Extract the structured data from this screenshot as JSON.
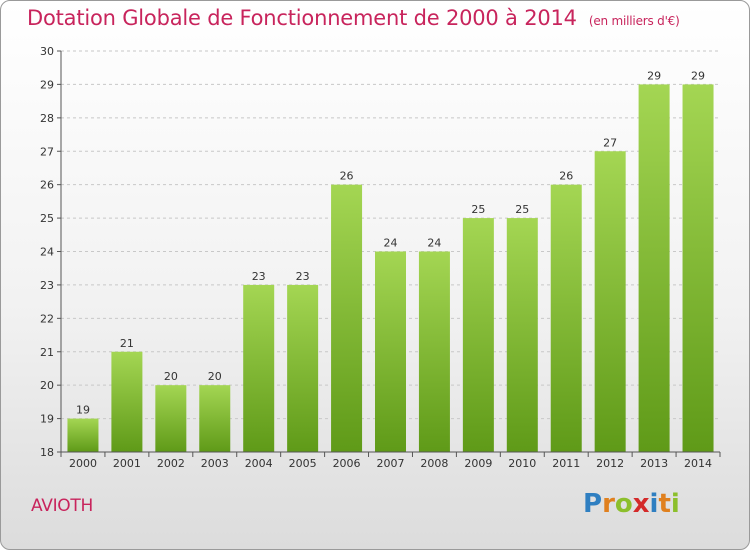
{
  "header": {
    "title": "Dotation Globale de Fonctionnement de 2000 à 2014",
    "unit": "(en milliers d'€)"
  },
  "footer": {
    "commune": "AVIOTH",
    "logo": {
      "letters": [
        {
          "char": "P",
          "color": "#2f7fc1"
        },
        {
          "char": "r",
          "color": "#e0801e"
        },
        {
          "char": "o",
          "color": "#8cbf2c"
        },
        {
          "char": "x",
          "color": "#d42a2a"
        },
        {
          "char": "i",
          "color": "#2f7fc1"
        },
        {
          "char": "t",
          "color": "#e0801e"
        },
        {
          "char": "i",
          "color": "#8cbf2c"
        }
      ]
    }
  },
  "colors": {
    "title": "#c8245c",
    "bar_top": "#a4d653",
    "bar_bottom": "#5f9a18",
    "grid": "#c8c8c8",
    "axis": "#555555"
  },
  "chart_data": {
    "type": "bar",
    "categories": [
      "2000",
      "2001",
      "2002",
      "2003",
      "2004",
      "2005",
      "2006",
      "2007",
      "2008",
      "2009",
      "2010",
      "2011",
      "2012",
      "2013",
      "2014"
    ],
    "values": [
      19,
      21,
      20,
      20,
      23,
      23,
      26,
      24,
      24,
      25,
      25,
      26,
      27,
      29,
      29
    ],
    "yticks": [
      18,
      19,
      20,
      21,
      22,
      23,
      24,
      25,
      26,
      27,
      28,
      29,
      30
    ],
    "ylim": [
      18,
      30
    ],
    "grid": true,
    "title": "Dotation Globale de Fonctionnement de 2000 à 2014",
    "xlabel": "",
    "ylabel": ""
  }
}
